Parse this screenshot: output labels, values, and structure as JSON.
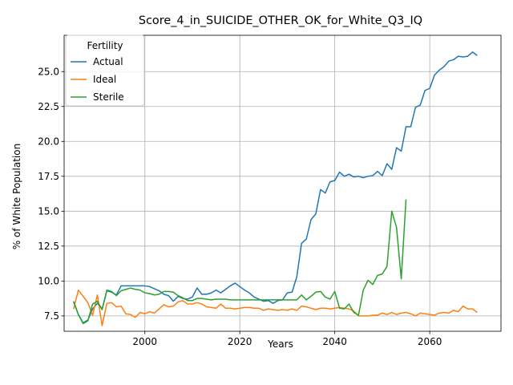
{
  "chart_data": {
    "type": "line",
    "title": "Score_4_in_SUICIDE_OTHER_OK_for_White_Q3_IQ",
    "xlabel": "Years",
    "ylabel": "% of White Population",
    "xlim": [
      1983,
      2075
    ],
    "ylim": [
      6.4,
      27.6
    ],
    "xticks": [
      2000,
      2020,
      2040,
      2060
    ],
    "xtick_labels": [
      "2000",
      "2020",
      "2040",
      "2060"
    ],
    "yticks": [
      7.5,
      10.0,
      12.5,
      15.0,
      17.5,
      20.0,
      22.5,
      25.0
    ],
    "ytick_labels": [
      "7.5",
      "10.0",
      "12.5",
      "15.0",
      "17.5",
      "20.0",
      "22.5",
      "25.0"
    ],
    "grid": true,
    "legend": {
      "title": "Fertility",
      "placement": "upper-left"
    },
    "series": [
      {
        "name": "Actual",
        "color": "#1f77b4",
        "x": [
          1985,
          1986,
          1987,
          1988,
          1989,
          1990,
          1991,
          1992,
          1993,
          1994,
          1995,
          1996,
          1997,
          1998,
          1999,
          2000,
          2001,
          2002,
          2003,
          2004,
          2005,
          2006,
          2007,
          2008,
          2009,
          2010,
          2011,
          2012,
          2013,
          2014,
          2015,
          2016,
          2017,
          2018,
          2019,
          2020,
          2021,
          2022,
          2023,
          2024,
          2025,
          2026,
          2027,
          2028,
          2029,
          2030,
          2031,
          2032,
          2033,
          2034,
          2035,
          2036,
          2037,
          2038,
          2039,
          2040,
          2041,
          2042,
          2043,
          2044,
          2045,
          2046,
          2047,
          2048,
          2049,
          2050,
          2051,
          2052,
          2053,
          2054,
          2055,
          2056,
          2057,
          2058,
          2059,
          2060,
          2061,
          2062,
          2063,
          2064,
          2065,
          2066,
          2067,
          2068,
          2069,
          2070
        ],
        "values": [
          8.5,
          7.6,
          7.0,
          7.2,
          8.0,
          8.4,
          8.0,
          9.3,
          9.2,
          9.0,
          9.65,
          9.65,
          9.65,
          9.65,
          9.65,
          9.65,
          9.6,
          9.45,
          9.3,
          9.05,
          8.95,
          8.55,
          8.9,
          8.75,
          8.7,
          8.85,
          9.5,
          9.05,
          9.05,
          9.15,
          9.35,
          9.15,
          9.4,
          9.65,
          9.85,
          9.6,
          9.35,
          9.15,
          8.85,
          8.7,
          8.55,
          8.6,
          8.4,
          8.6,
          8.65,
          9.15,
          9.2,
          10.3,
          12.7,
          13.0,
          14.4,
          14.8,
          16.55,
          16.3,
          17.1,
          17.2,
          17.8,
          17.5,
          17.65,
          17.45,
          17.5,
          17.4,
          17.5,
          17.55,
          17.85,
          17.55,
          18.4,
          18.0,
          19.55,
          19.3,
          21.05,
          21.05,
          22.45,
          22.6,
          23.65,
          23.8,
          24.75,
          25.1,
          25.35,
          25.75,
          25.85,
          26.1,
          26.05,
          26.1,
          26.4,
          26.15
        ]
      },
      {
        "name": "Ideal",
        "color": "#ff7f0e",
        "x": [
          1985,
          1986,
          1987,
          1988,
          1989,
          1990,
          1991,
          1992,
          1993,
          1994,
          1995,
          1996,
          1997,
          1998,
          1999,
          2000,
          2001,
          2002,
          2003,
          2004,
          2005,
          2006,
          2007,
          2008,
          2009,
          2010,
          2011,
          2012,
          2013,
          2014,
          2015,
          2016,
          2017,
          2018,
          2019,
          2020,
          2021,
          2022,
          2023,
          2024,
          2025,
          2026,
          2027,
          2028,
          2029,
          2030,
          2031,
          2032,
          2033,
          2034,
          2035,
          2036,
          2037,
          2038,
          2039,
          2040,
          2041,
          2042,
          2043,
          2044,
          2045,
          2046,
          2047,
          2048,
          2049,
          2050,
          2051,
          2052,
          2053,
          2054,
          2055,
          2056,
          2057,
          2058,
          2059,
          2060,
          2061,
          2062,
          2063,
          2064,
          2065,
          2066,
          2067,
          2068,
          2069,
          2070
        ],
        "values": [
          8.0,
          9.35,
          8.9,
          8.45,
          7.55,
          9.0,
          6.8,
          8.4,
          8.45,
          8.15,
          8.2,
          7.65,
          7.6,
          7.4,
          7.75,
          7.65,
          7.8,
          7.7,
          8.0,
          8.3,
          8.15,
          8.2,
          8.5,
          8.6,
          8.35,
          8.35,
          8.45,
          8.35,
          8.15,
          8.1,
          8.05,
          8.35,
          8.05,
          8.05,
          8.0,
          8.05,
          8.1,
          8.1,
          8.05,
          8.05,
          7.9,
          8.0,
          7.95,
          7.9,
          7.95,
          7.9,
          8.0,
          7.9,
          8.2,
          8.15,
          8.05,
          7.95,
          8.05,
          8.05,
          8.0,
          8.05,
          8.1,
          8.05,
          8.0,
          7.85,
          7.5,
          7.5,
          7.5,
          7.55,
          7.55,
          7.7,
          7.6,
          7.75,
          7.6,
          7.7,
          7.75,
          7.65,
          7.5,
          7.7,
          7.65,
          7.6,
          7.55,
          7.7,
          7.75,
          7.7,
          7.9,
          7.8,
          8.2,
          8.0,
          8.0,
          7.75
        ]
      },
      {
        "name": "Sterile",
        "color": "#2ca02c",
        "x": [
          1985,
          1986,
          1987,
          1988,
          1989,
          1990,
          1991,
          1992,
          1993,
          1994,
          1995,
          1996,
          1997,
          1998,
          1999,
          2000,
          2001,
          2002,
          2003,
          2004,
          2005,
          2006,
          2007,
          2008,
          2009,
          2010,
          2011,
          2012,
          2013,
          2014,
          2015,
          2016,
          2017,
          2018,
          2019,
          2020,
          2021,
          2022,
          2023,
          2024,
          2025,
          2026,
          2027,
          2028,
          2029,
          2030,
          2031,
          2032,
          2033,
          2034,
          2035,
          2036,
          2037,
          2038,
          2039,
          2040,
          2041,
          2042,
          2043,
          2044,
          2045,
          2046,
          2047,
          2048,
          2049,
          2050,
          2051,
          2052,
          2053,
          2054,
          2055
        ],
        "values": [
          8.55,
          7.6,
          6.95,
          7.15,
          8.35,
          8.55,
          7.95,
          9.35,
          9.25,
          8.95,
          9.3,
          9.4,
          9.5,
          9.4,
          9.35,
          9.15,
          9.1,
          9.0,
          9.05,
          9.25,
          9.25,
          9.2,
          8.95,
          8.8,
          8.6,
          8.6,
          8.75,
          8.75,
          8.7,
          8.65,
          8.7,
          8.7,
          8.7,
          8.65,
          8.65,
          8.65,
          8.65,
          8.65,
          8.65,
          8.65,
          8.65,
          8.65,
          8.65,
          8.65,
          8.65,
          8.65,
          8.65,
          8.65,
          9.0,
          8.65,
          8.9,
          9.2,
          9.25,
          8.85,
          8.7,
          9.25,
          8.05,
          8.0,
          8.35,
          7.75,
          7.55,
          9.35,
          10.05,
          9.75,
          10.4,
          10.5,
          11.05,
          15.0,
          13.85,
          10.15,
          15.85
        ]
      }
    ]
  }
}
